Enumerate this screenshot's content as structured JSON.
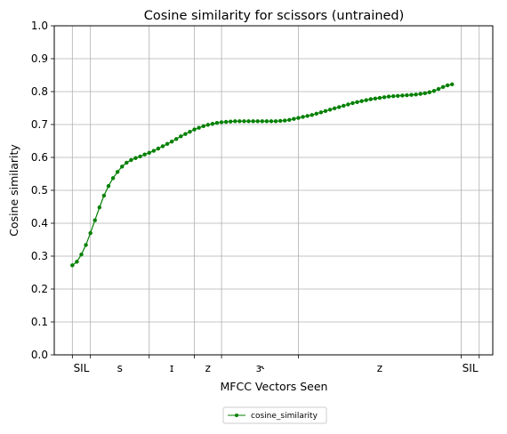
{
  "chart_data": {
    "type": "line",
    "title": "Cosine similarity for scissors (untrained)",
    "xlabel": "MFCC Vectors Seen",
    "ylabel": "Cosine similarity",
    "ylim": [
      0,
      1.0
    ],
    "xlim": [
      -4,
      93
    ],
    "yticks": [
      "0.0",
      "0.1",
      "0.2",
      "0.3",
      "0.4",
      "0.5",
      "0.6",
      "0.7",
      "0.8",
      "0.9",
      "1.0"
    ],
    "phone_boundaries": [
      0,
      4,
      17,
      27,
      33,
      50,
      86,
      90
    ],
    "phone_labels": [
      {
        "label": "SIL",
        "x": 2
      },
      {
        "label": "s",
        "x": 10.5
      },
      {
        "label": "ɪ",
        "x": 22
      },
      {
        "label": "z",
        "x": 30
      },
      {
        "label": "ɝ",
        "x": 41.5
      },
      {
        "label": "z",
        "x": 68
      },
      {
        "label": "SIL",
        "x": 88
      }
    ],
    "grid": true,
    "legend_position": "below-center",
    "series": [
      {
        "name": "cosine_similarity",
        "color": "#008000",
        "values": [
          0.272,
          0.283,
          0.305,
          0.334,
          0.37,
          0.409,
          0.448,
          0.484,
          0.513,
          0.537,
          0.556,
          0.572,
          0.584,
          0.592,
          0.598,
          0.603,
          0.609,
          0.614,
          0.62,
          0.627,
          0.634,
          0.641,
          0.648,
          0.656,
          0.664,
          0.671,
          0.678,
          0.685,
          0.69,
          0.695,
          0.699,
          0.702,
          0.705,
          0.707,
          0.708,
          0.709,
          0.71,
          0.71,
          0.71,
          0.71,
          0.71,
          0.71,
          0.71,
          0.71,
          0.71,
          0.71,
          0.711,
          0.712,
          0.714,
          0.717,
          0.72,
          0.723,
          0.726,
          0.729,
          0.733,
          0.737,
          0.741,
          0.745,
          0.749,
          0.753,
          0.757,
          0.761,
          0.765,
          0.768,
          0.771,
          0.774,
          0.777,
          0.779,
          0.781,
          0.783,
          0.785,
          0.786,
          0.787,
          0.788,
          0.789,
          0.79,
          0.791,
          0.793,
          0.795,
          0.798,
          0.802,
          0.808,
          0.814,
          0.819,
          0.822
        ]
      }
    ]
  }
}
